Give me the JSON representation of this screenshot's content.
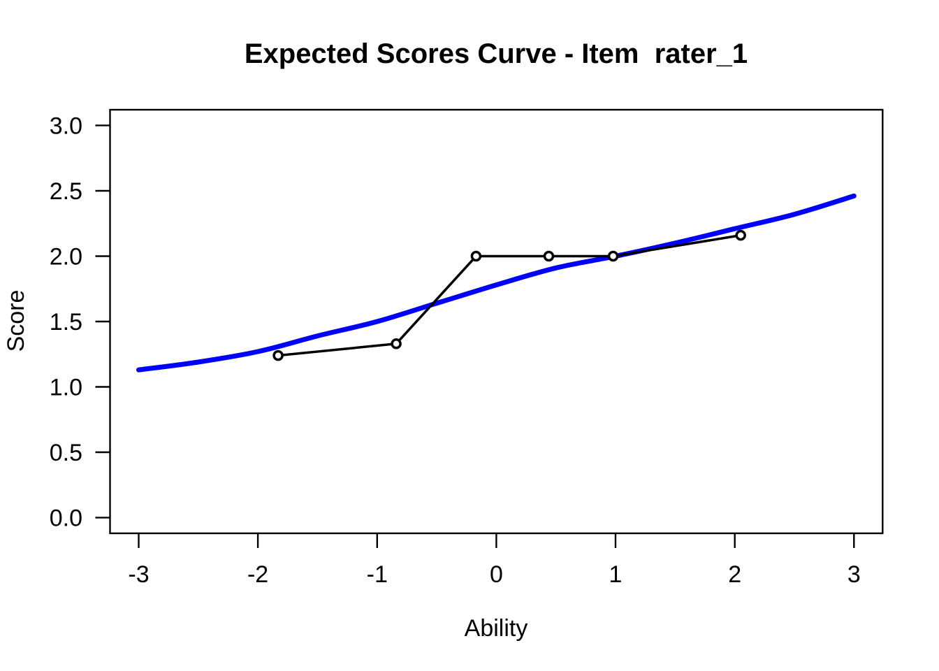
{
  "figure": {
    "title": "Expected Scores Curve - Item  rater_1",
    "xlabel": "Ability",
    "ylabel": "Score"
  },
  "chart_data": {
    "type": "line",
    "title": "Expected Scores Curve - Item  rater_1",
    "xlabel": "Ability",
    "ylabel": "Score",
    "xlim": [
      -3,
      3
    ],
    "ylim": [
      0,
      3
    ],
    "x_ticks": [
      -3,
      -2,
      -1,
      0,
      1,
      2,
      3
    ],
    "x_tick_labels": [
      "-3",
      "-2",
      "-1",
      "0",
      "1",
      "2",
      "3"
    ],
    "y_ticks": [
      0.0,
      0.5,
      1.0,
      1.5,
      2.0,
      2.5,
      3.0
    ],
    "y_tick_labels": [
      "0.0",
      "0.5",
      "1.0",
      "1.5",
      "2.0",
      "2.5",
      "3.0"
    ],
    "grid": false,
    "legend": "none",
    "background": "#FFFFFF",
    "axis_color": "#000000",
    "series": [
      {
        "name": "expected-score-curve",
        "type": "smooth-line",
        "color": "#0000FF",
        "line_width": 7,
        "x": [
          -3.0,
          -2.5,
          -2.0,
          -1.5,
          -1.0,
          -0.5,
          0.0,
          0.5,
          1.0,
          1.5,
          2.0,
          2.5,
          3.0
        ],
        "y": [
          1.13,
          1.19,
          1.27,
          1.39,
          1.5,
          1.64,
          1.78,
          1.91,
          2.0,
          2.1,
          2.21,
          2.32,
          2.46
        ]
      },
      {
        "name": "observed-scores",
        "type": "line-with-open-points",
        "color": "#000000",
        "line_width": 3.5,
        "point_radius": 6,
        "x": [
          -1.83,
          -0.84,
          -0.17,
          0.44,
          0.98,
          2.05
        ],
        "y": [
          1.24,
          1.33,
          2.0,
          2.0,
          2.0,
          2.16
        ]
      }
    ]
  }
}
